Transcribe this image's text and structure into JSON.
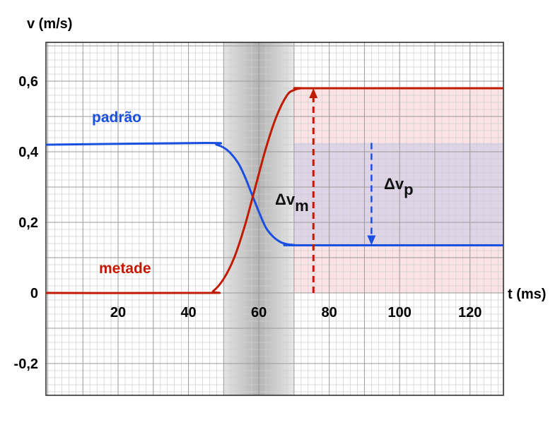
{
  "chart_data": {
    "type": "line",
    "xlabel": "t (ms)",
    "ylabel": "v (m/s)",
    "xlim": [
      -0.5,
      129.5
    ],
    "ylim": [
      -0.29,
      0.71
    ],
    "x_ticks": [
      20,
      40,
      60,
      80,
      100,
      120
    ],
    "x_tick_labels": [
      "20",
      "40",
      "60",
      "80",
      "100",
      "120"
    ],
    "y_ticks": [
      0.6,
      0.4,
      0.2,
      0,
      -0.2
    ],
    "y_tick_labels": [
      "0,6",
      "0,4",
      "0,2",
      "0",
      "-0,2"
    ],
    "grid": true,
    "shaded_interval": [
      50,
      70
    ],
    "series": [
      {
        "name": "padrão",
        "color": "#1a4fe0",
        "x": [
          -0.5,
          45,
          48,
          51,
          54,
          56,
          58,
          60,
          62,
          64,
          66,
          68,
          70,
          72,
          129.5
        ],
        "y": [
          0.42,
          0.425,
          0.42,
          0.405,
          0.37,
          0.33,
          0.28,
          0.23,
          0.185,
          0.16,
          0.145,
          0.138,
          0.136,
          0.135,
          0.135
        ]
      },
      {
        "name": "metade",
        "color": "#c21a00",
        "x": [
          -0.5,
          45,
          47,
          50,
          53,
          56,
          59,
          62,
          65,
          68,
          70,
          72,
          75,
          129.5
        ],
        "y": [
          0,
          0,
          0.005,
          0.04,
          0.1,
          0.19,
          0.3,
          0.41,
          0.5,
          0.56,
          0.575,
          0.58,
          0.58,
          0.58
        ]
      }
    ],
    "annotations": [
      {
        "label": "Δv",
        "subscript": "m",
        "color": "#c21a00",
        "x": 75.5,
        "from": 0,
        "to": 0.58
      },
      {
        "label": "Δv",
        "subscript": "p",
        "color": "#1a4fe0",
        "x": 92,
        "from": 0.425,
        "to": 0.135
      }
    ]
  }
}
